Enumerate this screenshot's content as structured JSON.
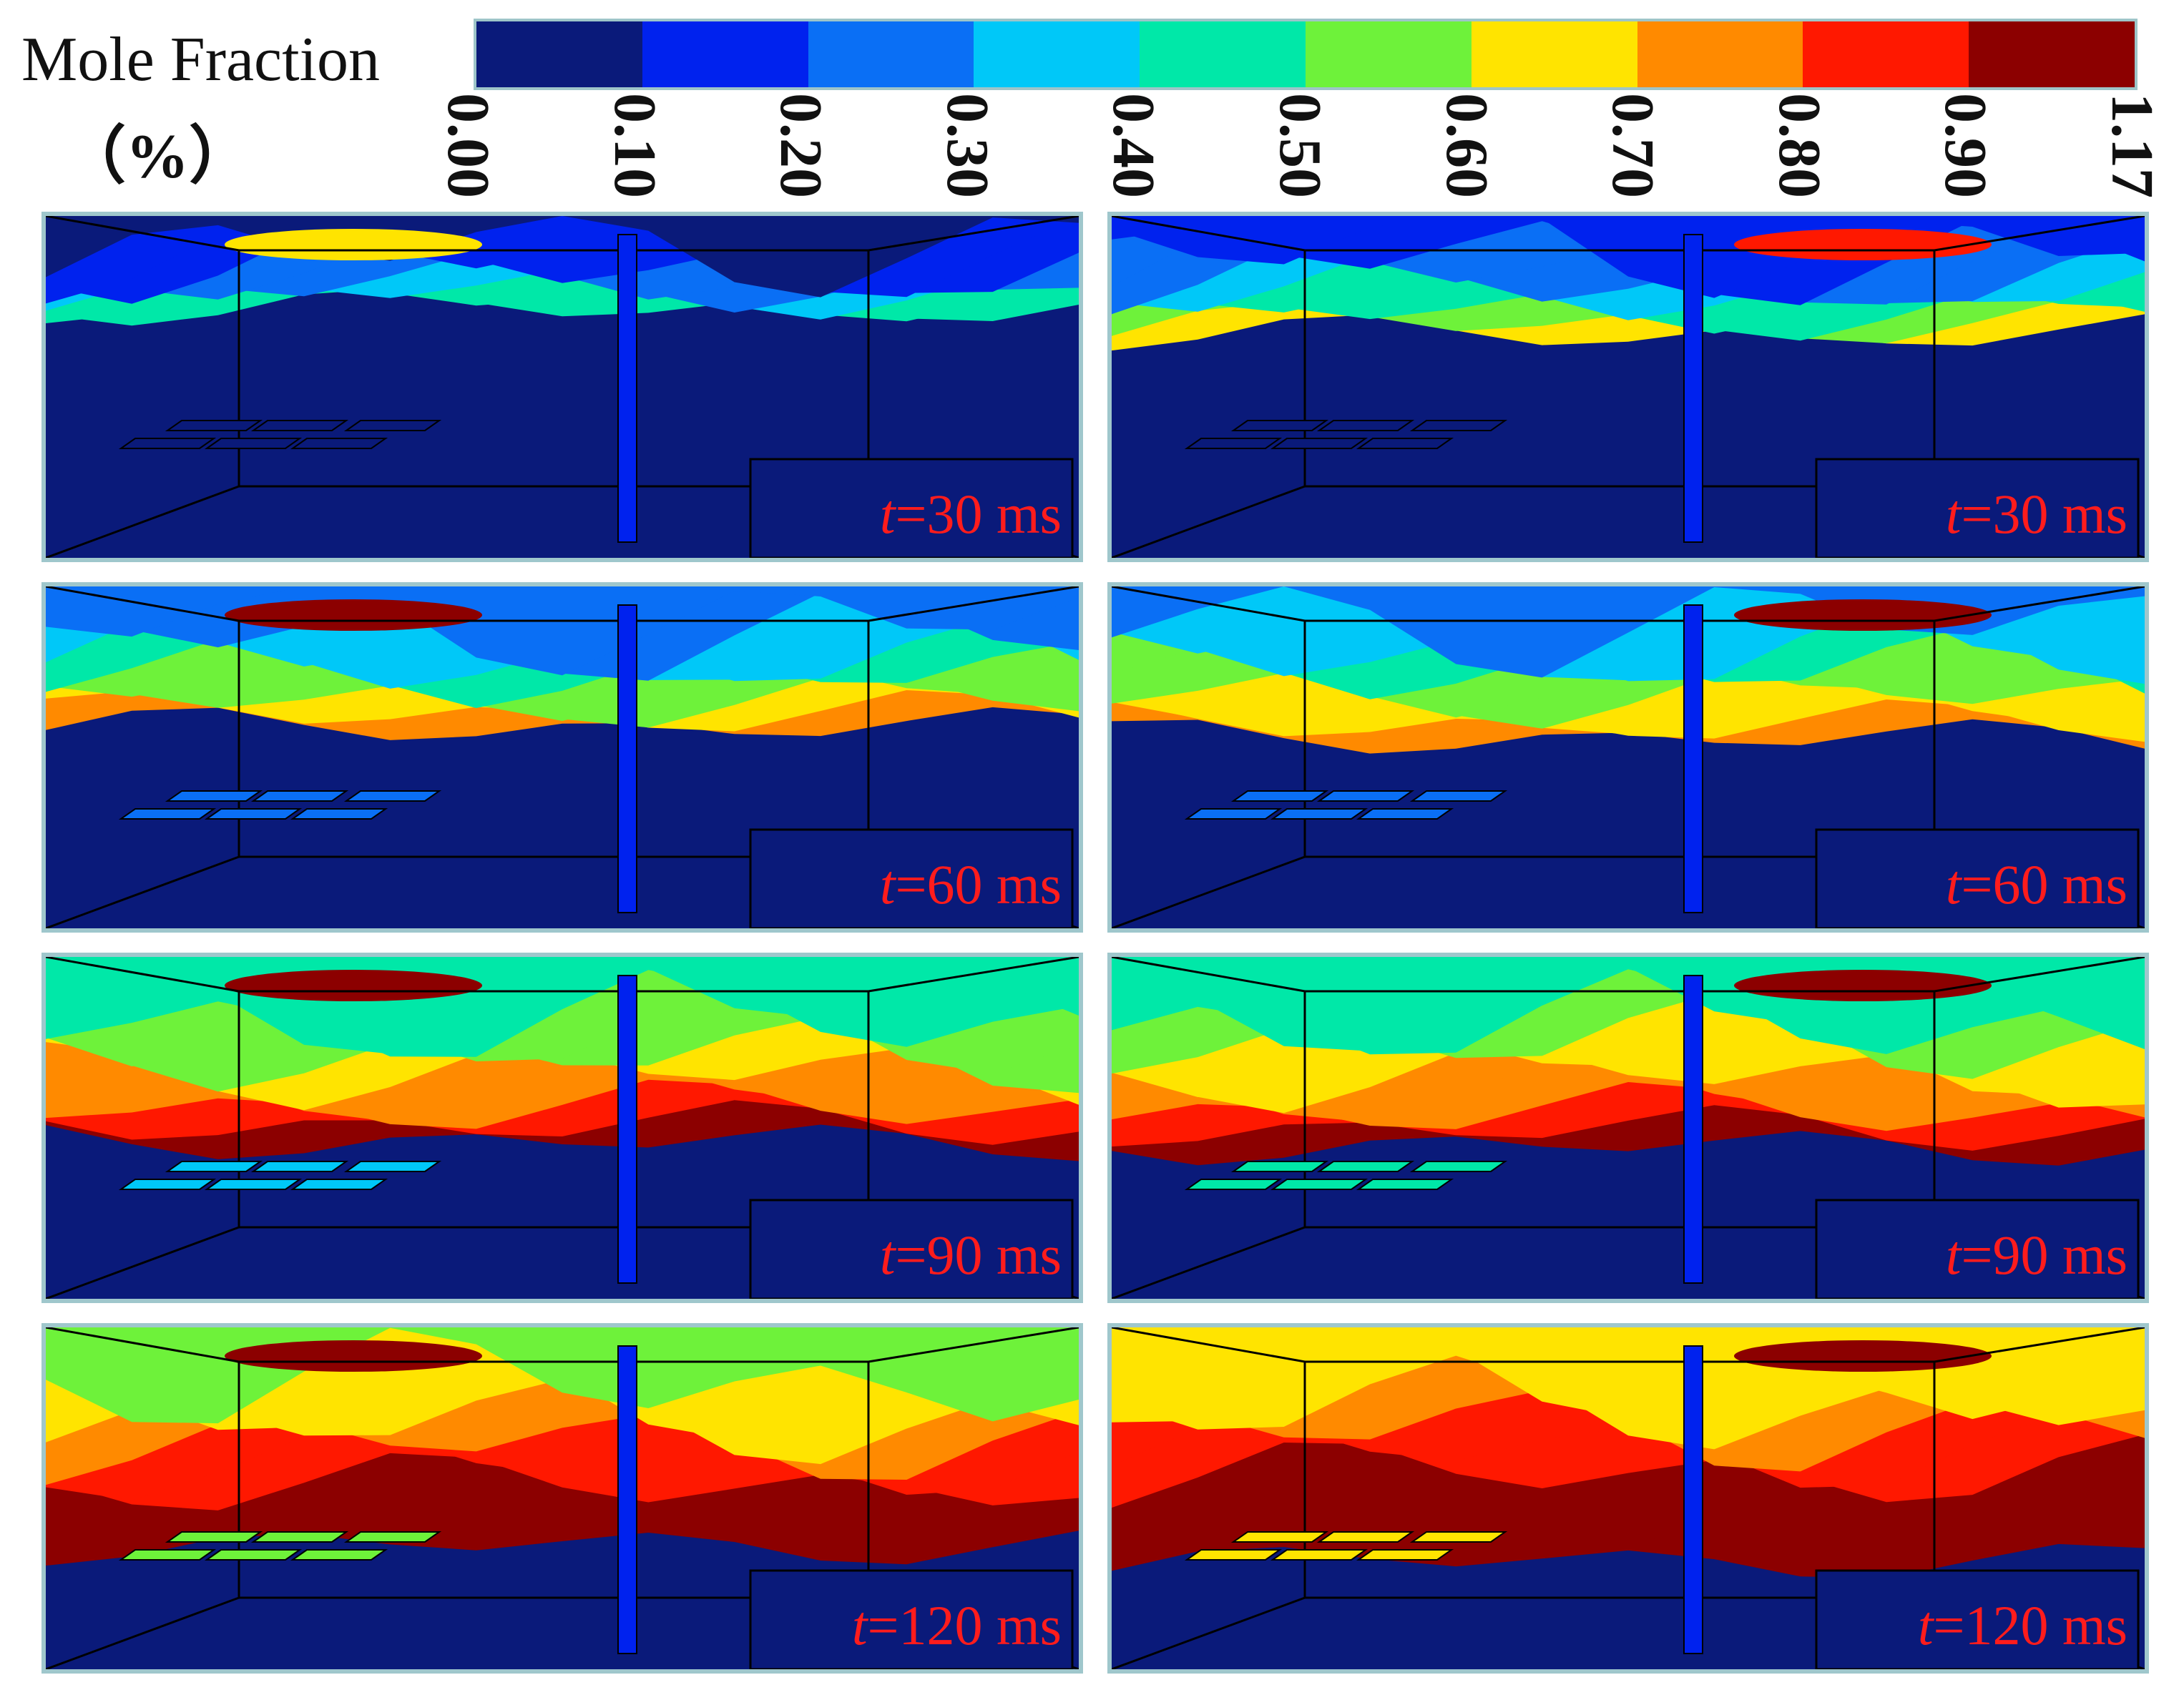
{
  "legend": {
    "title": "Mole Fraction",
    "unit": "（%）",
    "ticks": [
      "0.00",
      "0.10",
      "0.20",
      "0.30",
      "0.40",
      "0.50",
      "0.60",
      "0.70",
      "0.80",
      "0.90",
      "1.17"
    ],
    "colors": [
      "#0a1a7a",
      "#0022ee",
      "#0a6ff5",
      "#00c8f8",
      "#00e8a8",
      "#6ef23a",
      "#ffe400",
      "#ff8a00",
      "#ff1800",
      "#8c0000"
    ]
  },
  "time_variable": "t",
  "panels": [
    {
      "time": "=30 ms",
      "column": "left",
      "fill_level": 0.18
    },
    {
      "time": "=30 ms",
      "column": "right",
      "fill_level": 0.3
    },
    {
      "time": "=60 ms",
      "column": "left",
      "fill_level": 0.4
    },
    {
      "time": "=60 ms",
      "column": "right",
      "fill_level": 0.45
    },
    {
      "time": "=90 ms",
      "column": "left",
      "fill_level": 0.6
    },
    {
      "time": "=90 ms",
      "column": "right",
      "fill_level": 0.62
    },
    {
      "time": "=120 ms",
      "column": "left",
      "fill_level": 0.75
    },
    {
      "time": "=120 ms",
      "column": "right",
      "fill_level": 0.82
    }
  ]
}
